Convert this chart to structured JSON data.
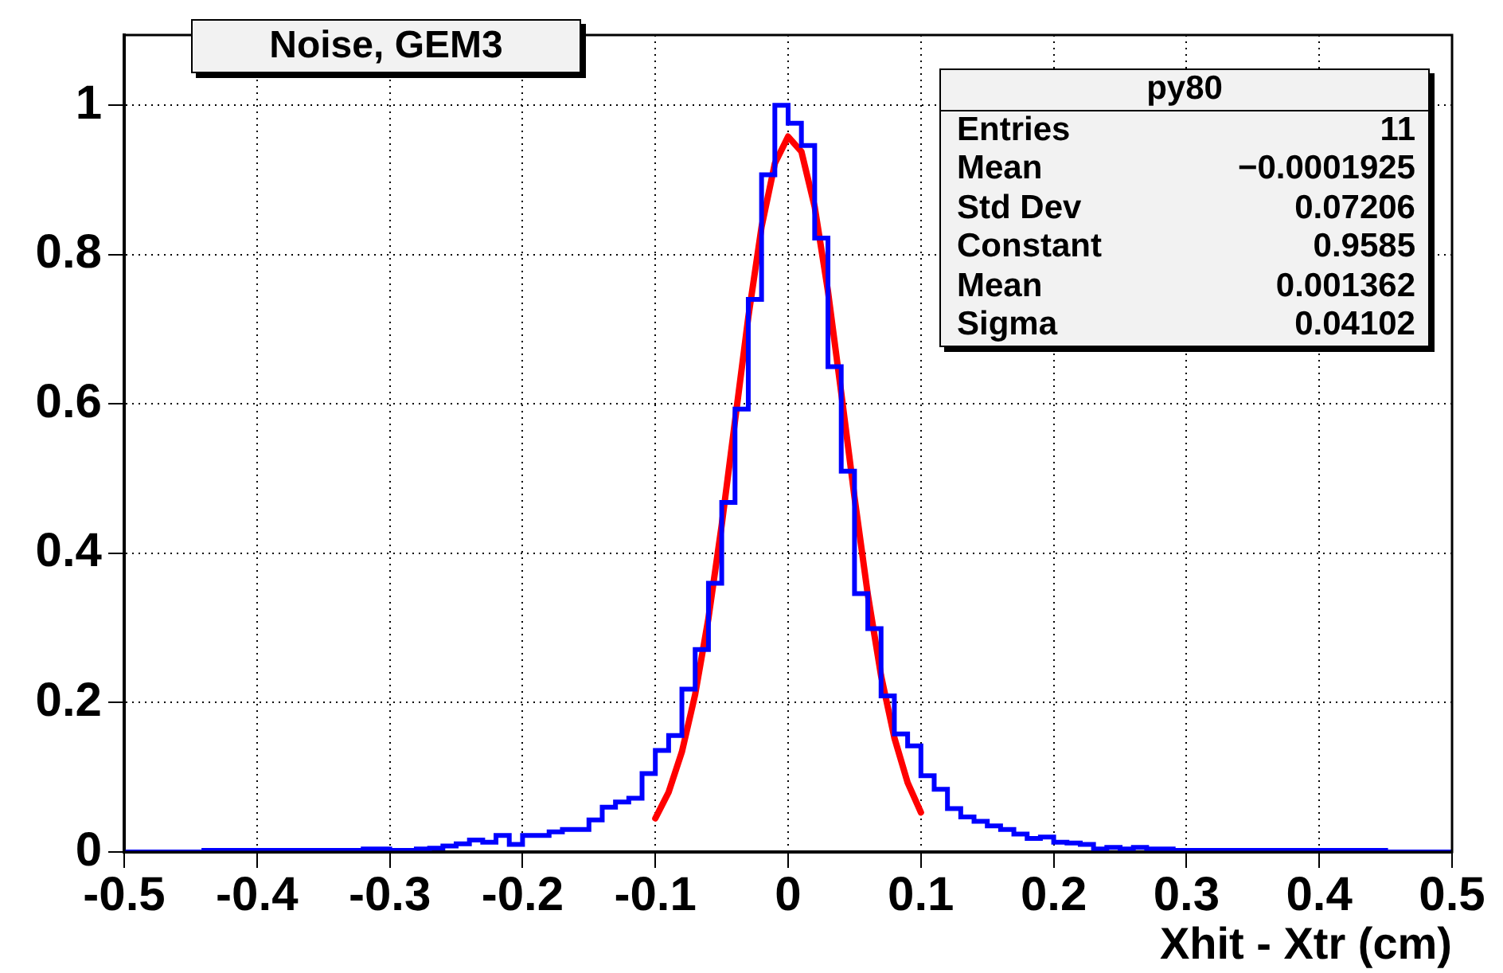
{
  "chart_data": {
    "type": "histogram",
    "title": "Noise, GEM3",
    "xlabel": "Xhit - Xtr (cm)",
    "bins": [
      -0.5,
      -0.49,
      -0.48,
      -0.47,
      -0.46,
      -0.45,
      -0.44,
      -0.43,
      -0.42,
      -0.41,
      -0.4,
      -0.39,
      -0.38,
      -0.37,
      -0.36,
      -0.35,
      -0.34,
      -0.33,
      -0.32,
      -0.31,
      -0.3,
      -0.29,
      -0.28,
      -0.27,
      -0.26,
      -0.25,
      -0.24,
      -0.23,
      -0.22,
      -0.21,
      -0.2,
      -0.19,
      -0.18,
      -0.17,
      -0.16,
      -0.15,
      -0.14,
      -0.13,
      -0.12,
      -0.11,
      -0.1,
      -0.09,
      -0.08,
      -0.07,
      -0.06,
      -0.05,
      -0.04,
      -0.03,
      -0.02,
      -0.01,
      0,
      0.01,
      0.02,
      0.03,
      0.04,
      0.05,
      0.06,
      0.07,
      0.08,
      0.09,
      0.1,
      0.11,
      0.12,
      0.13,
      0.14,
      0.15,
      0.16,
      0.17,
      0.18,
      0.19,
      0.2,
      0.21,
      0.22,
      0.23,
      0.24,
      0.25,
      0.26,
      0.27,
      0.28,
      0.29,
      0.3,
      0.31,
      0.32,
      0.33,
      0.34,
      0.35,
      0.36,
      0.37,
      0.38,
      0.39,
      0.4,
      0.41,
      0.42,
      0.43,
      0.44,
      0.45,
      0.46,
      0.47,
      0.48,
      0.49,
      0.5
    ],
    "series": [
      {
        "color": "#0000ff",
        "values": [
          0,
          0,
          0,
          0,
          0,
          0,
          0.002,
          0.002,
          0.002,
          0.002,
          0.002,
          0.002,
          0.002,
          0.002,
          0.002,
          0.002,
          0.002,
          0.002,
          0.004,
          0.004,
          0.002,
          0.002,
          0.004,
          0.005,
          0.008,
          0.011,
          0.016,
          0.013,
          0.022,
          0.01,
          0.022,
          0.022,
          0.027,
          0.03,
          0.03,
          0.043,
          0.06,
          0.067,
          0.072,
          0.105,
          0.136,
          0.156,
          0.218,
          0.271,
          0.36,
          0.468,
          0.593,
          0.74,
          0.907,
          1.0,
          0.976,
          0.946,
          0.822,
          0.65,
          0.51,
          0.346,
          0.299,
          0.209,
          0.158,
          0.142,
          0.102,
          0.084,
          0.058,
          0.047,
          0.041,
          0.035,
          0.03,
          0.024,
          0.018,
          0.02,
          0.013,
          0.012,
          0.01,
          0.004,
          0.006,
          0.004,
          0.006,
          0.004,
          0.004,
          0.002,
          0.002,
          0.002,
          0.002,
          0.002,
          0.002,
          0.002,
          0.002,
          0.002,
          0.002,
          0.002,
          0.002,
          0.002,
          0.002,
          0.002,
          0.002,
          0,
          0,
          0,
          0,
          0
        ]
      },
      {
        "type": "line",
        "color": "#ff0000",
        "x": [
          -0.1,
          -0.09,
          -0.08,
          -0.07,
          -0.06,
          -0.05,
          -0.04,
          -0.03,
          -0.02,
          -0.01,
          0,
          0.01,
          0.02,
          0.03,
          0.04,
          0.05,
          0.06,
          0.07,
          0.08,
          0.09,
          0.1
        ],
        "values": [
          0.045,
          0.08,
          0.134,
          0.211,
          0.313,
          0.438,
          0.577,
          0.716,
          0.837,
          0.922,
          0.958,
          0.938,
          0.864,
          0.751,
          0.615,
          0.475,
          0.345,
          0.236,
          0.153,
          0.093,
          0.053
        ]
      }
    ],
    "xlim": [
      -0.5,
      0.5
    ],
    "xticks": [
      -0.5,
      -0.4,
      -0.3,
      -0.2,
      -0.1,
      0,
      0.1,
      0.2,
      0.3,
      0.4,
      0.5
    ],
    "ylim": [
      0,
      1.094
    ],
    "yticks": [
      0,
      0.2,
      0.4,
      0.6,
      0.8,
      1
    ],
    "grid": true,
    "annotations": [
      "py80",
      "Entries",
      "11",
      "Mean",
      "−0.0001925",
      "Std Dev",
      "0.07206",
      "Constant",
      "0.9585",
      "Mean",
      "0.001362",
      "Sigma",
      "0.04102"
    ]
  }
}
